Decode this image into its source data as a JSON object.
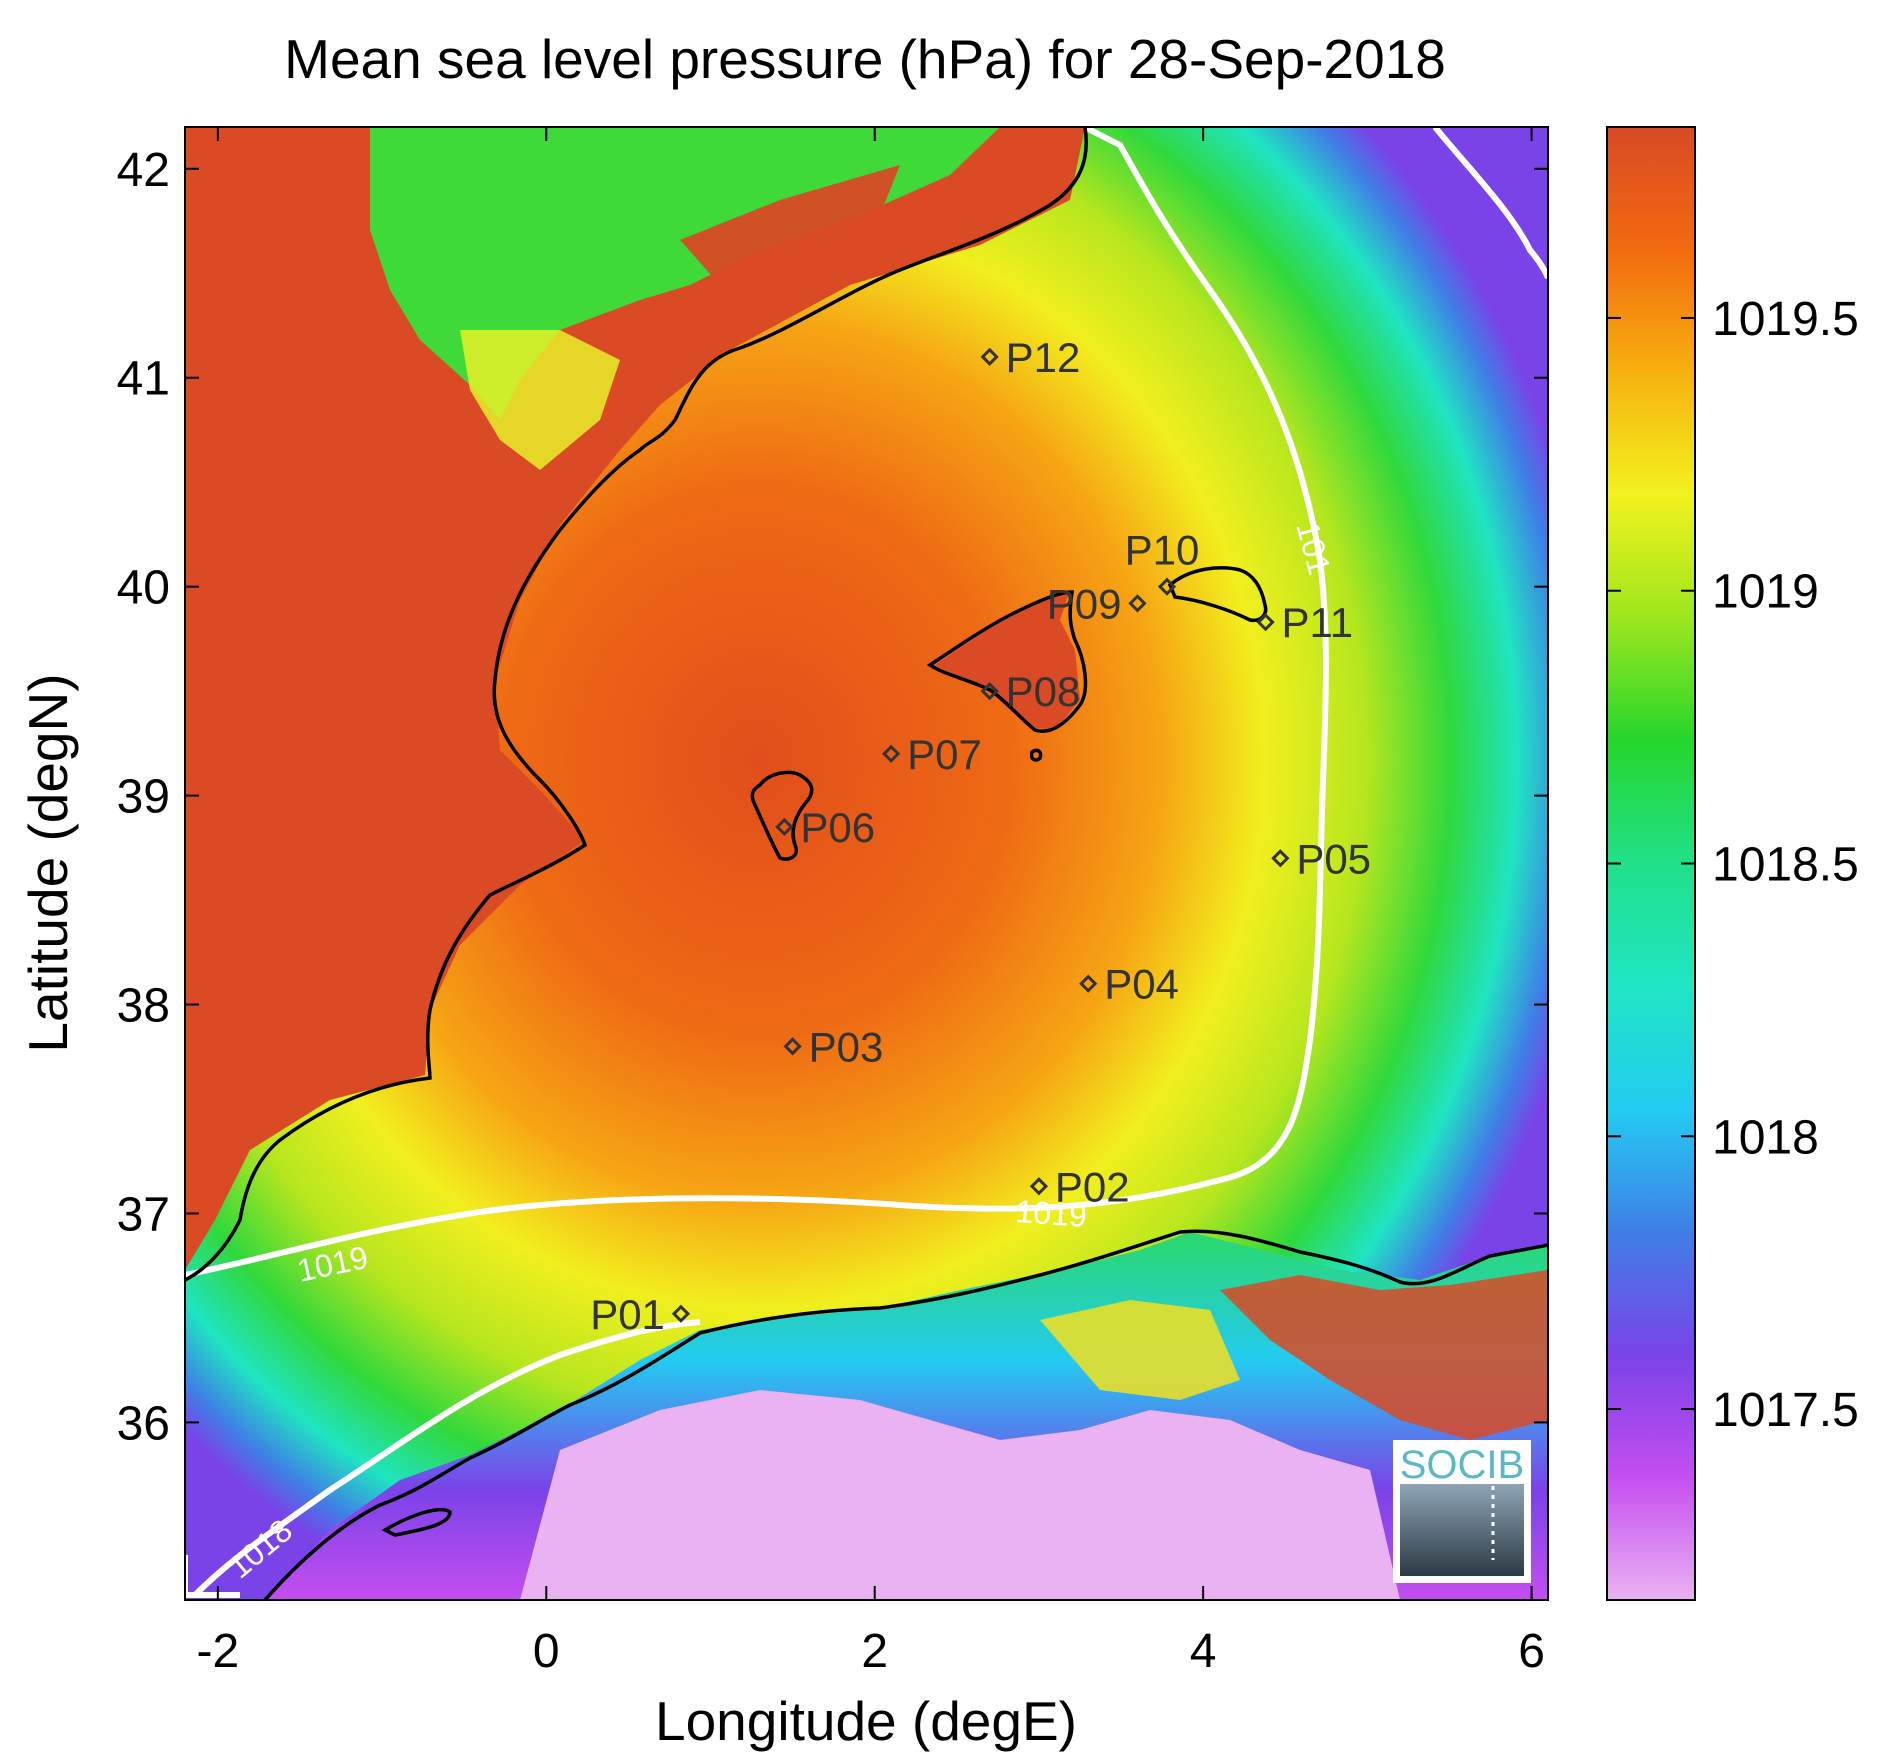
{
  "title": "Mean sea level pressure (hPa) for 28-Sep-2018",
  "xlabel": "Longitude (degE)",
  "ylabel": "Latitude (degN)",
  "xlim": [
    -2.2,
    6.1
  ],
  "ylim": [
    35.15,
    42.2
  ],
  "xticks": [
    {
      "v": -2,
      "label": "-2"
    },
    {
      "v": 0,
      "label": "0"
    },
    {
      "v": 2,
      "label": "2"
    },
    {
      "v": 4,
      "label": "4"
    },
    {
      "v": 6,
      "label": "6"
    }
  ],
  "yticks": [
    {
      "v": 36,
      "label": "36"
    },
    {
      "v": 37,
      "label": "37"
    },
    {
      "v": 38,
      "label": "38"
    },
    {
      "v": 39,
      "label": "39"
    },
    {
      "v": 40,
      "label": "40"
    },
    {
      "v": 41,
      "label": "41"
    },
    {
      "v": 42,
      "label": "42"
    }
  ],
  "colorbar": {
    "range": [
      1017.15,
      1019.85
    ],
    "ticks": [
      {
        "v": 1017.5,
        "label": "1017.5"
      },
      {
        "v": 1018,
        "label": "1018"
      },
      {
        "v": 1018.5,
        "label": "1018.5"
      },
      {
        "v": 1019,
        "label": "1019"
      },
      {
        "v": 1019.5,
        "label": "1019.5"
      }
    ],
    "colormap": [
      "#eab2f2",
      "#c44ef0",
      "#7a43e8",
      "#3f7fe6",
      "#24cbf2",
      "#1fe6c4",
      "#21e08a",
      "#25d62c",
      "#9de61e",
      "#f2f21e",
      "#f7b10f",
      "#f26a0f",
      "#d94a25"
    ]
  },
  "stations": [
    {
      "name": "P01",
      "lon": 0.82,
      "lat": 36.52,
      "label_side": "left"
    },
    {
      "name": "P02",
      "lon": 3.0,
      "lat": 37.13,
      "label_side": "right"
    },
    {
      "name": "P03",
      "lon": 1.5,
      "lat": 37.8,
      "label_side": "right"
    },
    {
      "name": "P04",
      "lon": 3.3,
      "lat": 38.1,
      "label_side": "right"
    },
    {
      "name": "P05",
      "lon": 4.47,
      "lat": 38.7,
      "label_side": "right"
    },
    {
      "name": "P06",
      "lon": 1.45,
      "lat": 38.85,
      "label_side": "right"
    },
    {
      "name": "P07",
      "lon": 2.1,
      "lat": 39.2,
      "label_side": "right"
    },
    {
      "name": "P08",
      "lon": 2.7,
      "lat": 39.5,
      "label_side": "right"
    },
    {
      "name": "P09",
      "lon": 3.6,
      "lat": 39.92,
      "label_side": "left"
    },
    {
      "name": "P10",
      "lon": 3.78,
      "lat": 40.0,
      "label_side": "above"
    },
    {
      "name": "P11",
      "lon": 4.38,
      "lat": 39.83,
      "label_side": "right"
    },
    {
      "name": "P12",
      "lon": 2.7,
      "lat": 41.1,
      "label_side": "right"
    }
  ],
  "contour_labels": [
    "1019",
    "1019",
    "101",
    "1018"
  ],
  "logo_text": "SOCIB",
  "colors": {
    "land_high": "#d94a25",
    "contour": "#ffffff",
    "coastline": "#000000",
    "station_text": "#333333"
  }
}
